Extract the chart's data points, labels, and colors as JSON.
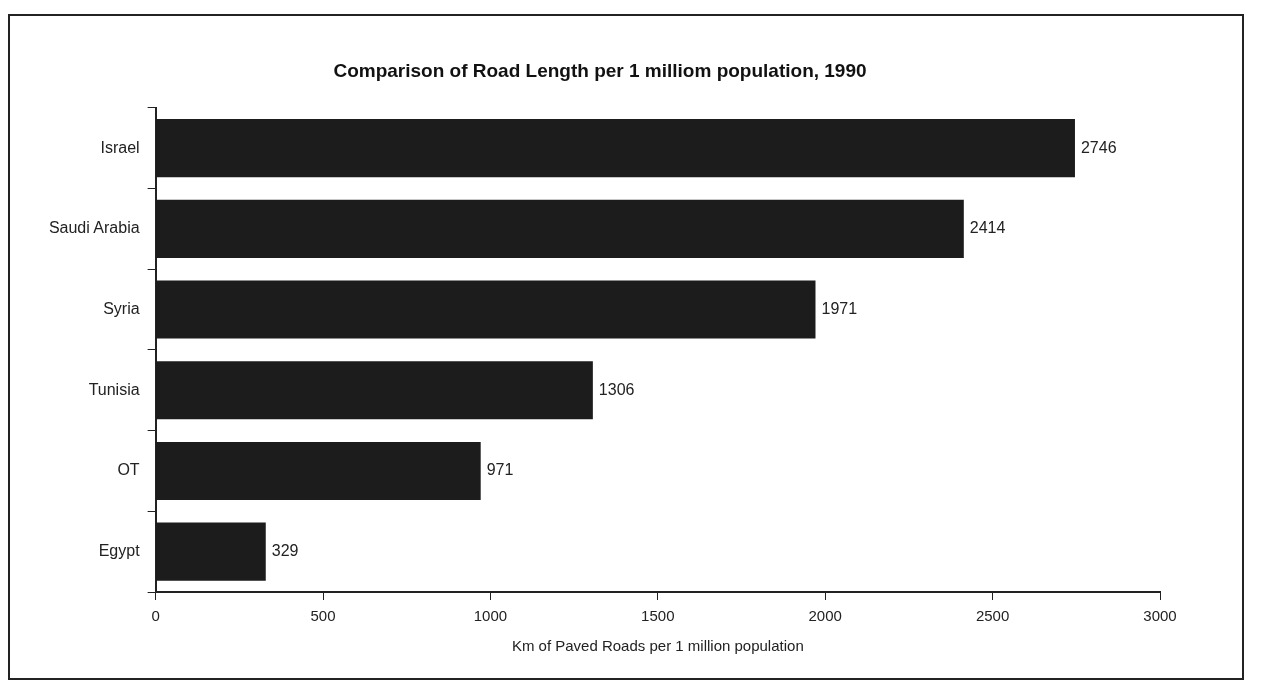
{
  "chart_data": {
    "type": "bar",
    "orientation": "horizontal",
    "title": "Comparison of Road Length per 1 milliom population, 1990",
    "xlabel": "Km of Paved Roads per 1 million population",
    "categories": [
      "Israel",
      "Saudi Arabia",
      "Syria",
      "Tunisia",
      "OT",
      "Egypt"
    ],
    "values": [
      2746,
      2414,
      1971,
      1306,
      971,
      329
    ],
    "color": "#1c1c1c",
    "xlim": [
      0,
      3000
    ],
    "xticks": [
      0,
      500,
      1000,
      1500,
      2000,
      2500,
      3000
    ],
    "grid": false,
    "legend": false,
    "data_labels": true
  }
}
